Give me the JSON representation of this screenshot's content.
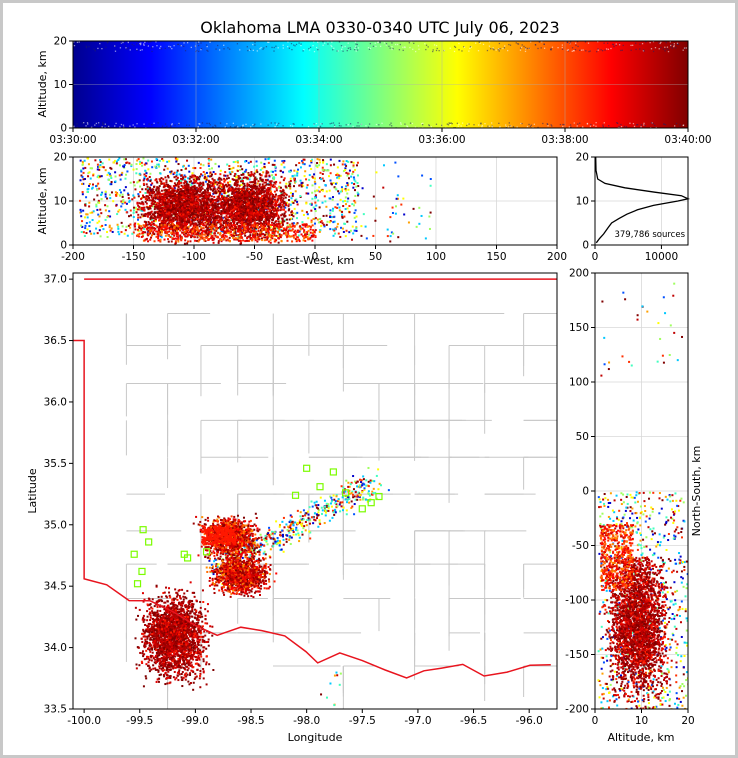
{
  "title": "Oklahoma LMA 0330-0340 UTC July 06, 2023",
  "chart_data": [
    {
      "panel": "time-altitude",
      "type": "scatter",
      "ylabel": "Altitude, km",
      "ylim": [
        0,
        20
      ],
      "yticks": [
        "0",
        "10",
        "20"
      ],
      "xticks": [
        "03:30:00",
        "03:32:00",
        "03:34:00",
        "03:36:00",
        "03:38:00",
        "03:40:00"
      ],
      "grid": true,
      "colormap": "jet (colored by time)"
    },
    {
      "panel": "east-west-altitude",
      "type": "scatter",
      "xlabel": "East-West, km",
      "ylabel": "Altitude, km",
      "xlim": [
        -200,
        200
      ],
      "ylim": [
        0,
        20
      ],
      "xticks": [
        "-200",
        "-150",
        "-100",
        "-50",
        "0",
        "50",
        "100",
        "150",
        "200"
      ],
      "yticks": [
        "0",
        "10",
        "20"
      ],
      "dense_clusters_km": [
        [
          -110,
          9
        ],
        [
          -55,
          9
        ]
      ],
      "grid": true
    },
    {
      "panel": "altitude-histogram",
      "type": "line",
      "xlim": [
        0,
        14000
      ],
      "ylim": [
        0,
        20
      ],
      "xticks": [
        "0",
        "10000"
      ],
      "yticks": [
        "0",
        "10",
        "20"
      ],
      "annotation": "379,786 sources",
      "profile": [
        {
          "alt": 0.5,
          "count": 200
        },
        {
          "alt": 1.5,
          "count": 700
        },
        {
          "alt": 2.5,
          "count": 1300
        },
        {
          "alt": 4,
          "count": 2000
        },
        {
          "alt": 5,
          "count": 2500
        },
        {
          "alt": 6,
          "count": 3600
        },
        {
          "alt": 7,
          "count": 4800
        },
        {
          "alt": 8,
          "count": 6400
        },
        {
          "alt": 9,
          "count": 8800
        },
        {
          "alt": 10,
          "count": 12500
        },
        {
          "alt": 10.5,
          "count": 14000
        },
        {
          "alt": 11.2,
          "count": 13000
        },
        {
          "alt": 12,
          "count": 9000
        },
        {
          "alt": 13,
          "count": 4500
        },
        {
          "alt": 14,
          "count": 1500
        },
        {
          "alt": 15,
          "count": 400
        },
        {
          "alt": 17,
          "count": 150
        },
        {
          "alt": 20,
          "count": 100
        }
      ]
    },
    {
      "panel": "plan-view",
      "type": "scatter",
      "xlabel": "Longitude",
      "ylabel": "Latitude",
      "xlim": [
        -100.1,
        -95.75
      ],
      "ylim": [
        33.5,
        37.05
      ],
      "xticks": [
        "-100.0",
        "-99.5",
        "-99.0",
        "-98.5",
        "-98.0",
        "-97.5",
        "-97.0",
        "-96.5",
        "-96.0"
      ],
      "yticks": [
        "33.5",
        "34.0",
        "34.5",
        "35.0",
        "35.5",
        "36.0",
        "36.5",
        "37.0"
      ],
      "dense_regions": [
        {
          "lon": -99.2,
          "lat": 34.1
        },
        {
          "lon": -98.6,
          "lat": 34.6
        },
        {
          "lon": -98.7,
          "lat": 34.9
        }
      ],
      "station_markers": [
        [
          -99.47,
          34.96
        ],
        [
          -99.42,
          34.86
        ],
        [
          -99.55,
          34.76
        ],
        [
          -99.48,
          34.62
        ],
        [
          -99.52,
          34.52
        ],
        [
          -99.1,
          34.76
        ],
        [
          -99.07,
          34.73
        ],
        [
          -98.9,
          34.78
        ],
        [
          -98.0,
          35.46
        ],
        [
          -97.88,
          35.31
        ],
        [
          -97.76,
          35.43
        ],
        [
          -97.65,
          35.26
        ],
        [
          -97.5,
          35.13
        ],
        [
          -97.42,
          35.18
        ],
        [
          -97.35,
          35.23
        ],
        [
          -98.1,
          35.24
        ]
      ]
    },
    {
      "panel": "altitude-north-south",
      "type": "scatter",
      "xlabel": "Altitude, km",
      "ylabel": "North-South, km",
      "xlim": [
        0,
        20
      ],
      "ylim": [
        -200,
        200
      ],
      "xticks": [
        "0",
        "10",
        "20"
      ],
      "yticks": [
        "200",
        "150",
        "100",
        "50",
        "0",
        "-50",
        "-100",
        "-150",
        "-200"
      ],
      "grid": true
    }
  ],
  "colors": {
    "state_border": "#e8141e",
    "county_lines": "#c8c8c8",
    "station_marker": "#7cfc00"
  }
}
